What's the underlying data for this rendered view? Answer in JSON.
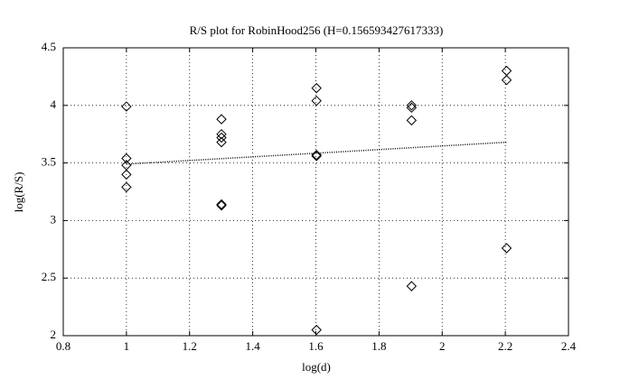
{
  "chart_data": {
    "type": "scatter",
    "title": "R/S plot for RobinHood256 (H=0.156593427617333)",
    "x_label": "log(d)",
    "y_label": "log(R/S)",
    "xlim": [
      0.8,
      2.4
    ],
    "xticks": [
      0.8,
      1,
      1.2,
      1.4,
      1.6,
      1.8,
      2,
      2.2,
      2.4
    ],
    "ylim": [
      2,
      4.5
    ],
    "yticks": [
      2,
      2.5,
      3,
      3.5,
      4,
      4.5
    ],
    "grid": true,
    "series": [
      {
        "marker": "diamond",
        "color": "#000000",
        "x": [
          1,
          1,
          1,
          1,
          1,
          1.301,
          1.301,
          1.301,
          1.301,
          1.301,
          1.301,
          1.602,
          1.602,
          1.602,
          1.602,
          1.602,
          1.903,
          1.903,
          1.903,
          1.903,
          2.204,
          2.204,
          2.204
        ],
        "values": [
          3.99,
          3.54,
          3.48,
          3.4,
          3.29,
          3.88,
          3.75,
          3.72,
          3.68,
          3.14,
          3.13,
          4.15,
          4.04,
          3.57,
          3.56,
          2.05,
          4.0,
          3.98,
          3.87,
          2.43,
          4.3,
          4.22,
          2.76
        ]
      },
      {
        "marker": "dotted-line",
        "color": "#000000",
        "x": [
          1,
          2.204
        ],
        "values": [
          3.49,
          3.68
        ]
      }
    ]
  }
}
